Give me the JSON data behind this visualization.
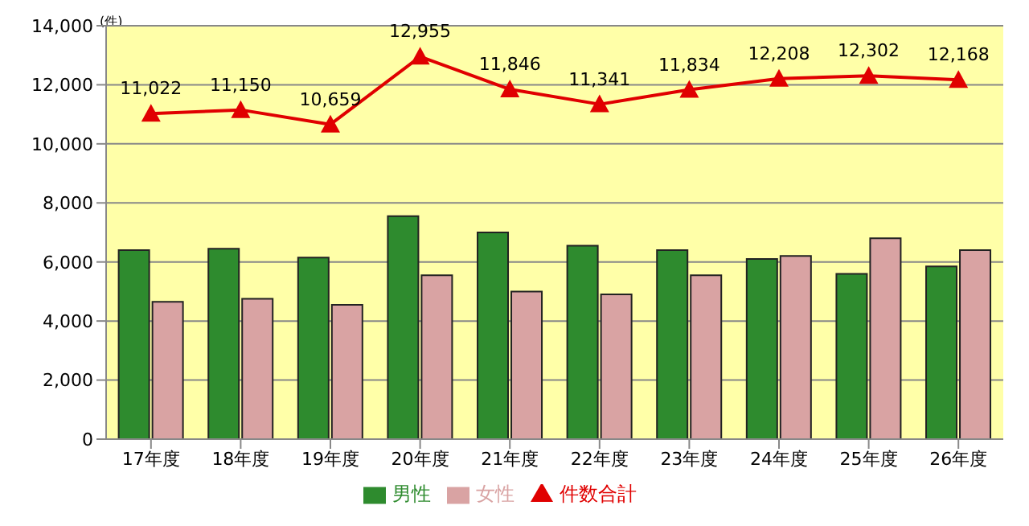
{
  "chart_data": {
    "type": "bar",
    "ylabel": "(件)",
    "categories": [
      "17年度",
      "18年度",
      "19年度",
      "20年度",
      "21年度",
      "22年度",
      "23年度",
      "24年度",
      "25年度",
      "26年度"
    ],
    "series": [
      {
        "name": "男性",
        "color": "#2e8b2e",
        "values": [
          6400,
          6450,
          6150,
          7550,
          7000,
          6550,
          6400,
          6100,
          5600,
          5850
        ]
      },
      {
        "name": "女性",
        "color": "#d9a3a3",
        "values": [
          4650,
          4750,
          4550,
          5550,
          5000,
          4900,
          5550,
          6200,
          6800,
          6400
        ]
      },
      {
        "name": "件数合計",
        "type": "line",
        "color": "#e00000",
        "marker": "triangle",
        "values": [
          11022,
          11150,
          10659,
          12955,
          11846,
          11341,
          11834,
          12208,
          12302,
          12168
        ],
        "value_labels": [
          "11,022",
          "11,150",
          "10,659",
          "12,955",
          "11,846",
          "11,341",
          "11,834",
          "12,208",
          "12,302",
          "12,168"
        ]
      }
    ],
    "ylim": [
      0,
      14000
    ],
    "yticks": [
      0,
      {
        "value": 2000,
        "label": "2,000"
      },
      {
        "value": 4000,
        "label": "4,000"
      },
      {
        "value": 6000,
        "label": "6,000"
      },
      {
        "value": 8000,
        "label": "8,000"
      },
      {
        "value": 10000,
        "label": "10,000"
      },
      {
        "value": 12000,
        "label": "12,000"
      },
      {
        "value": 14000,
        "label": "14,000"
      }
    ],
    "grid": "y",
    "legend": "bottom"
  }
}
